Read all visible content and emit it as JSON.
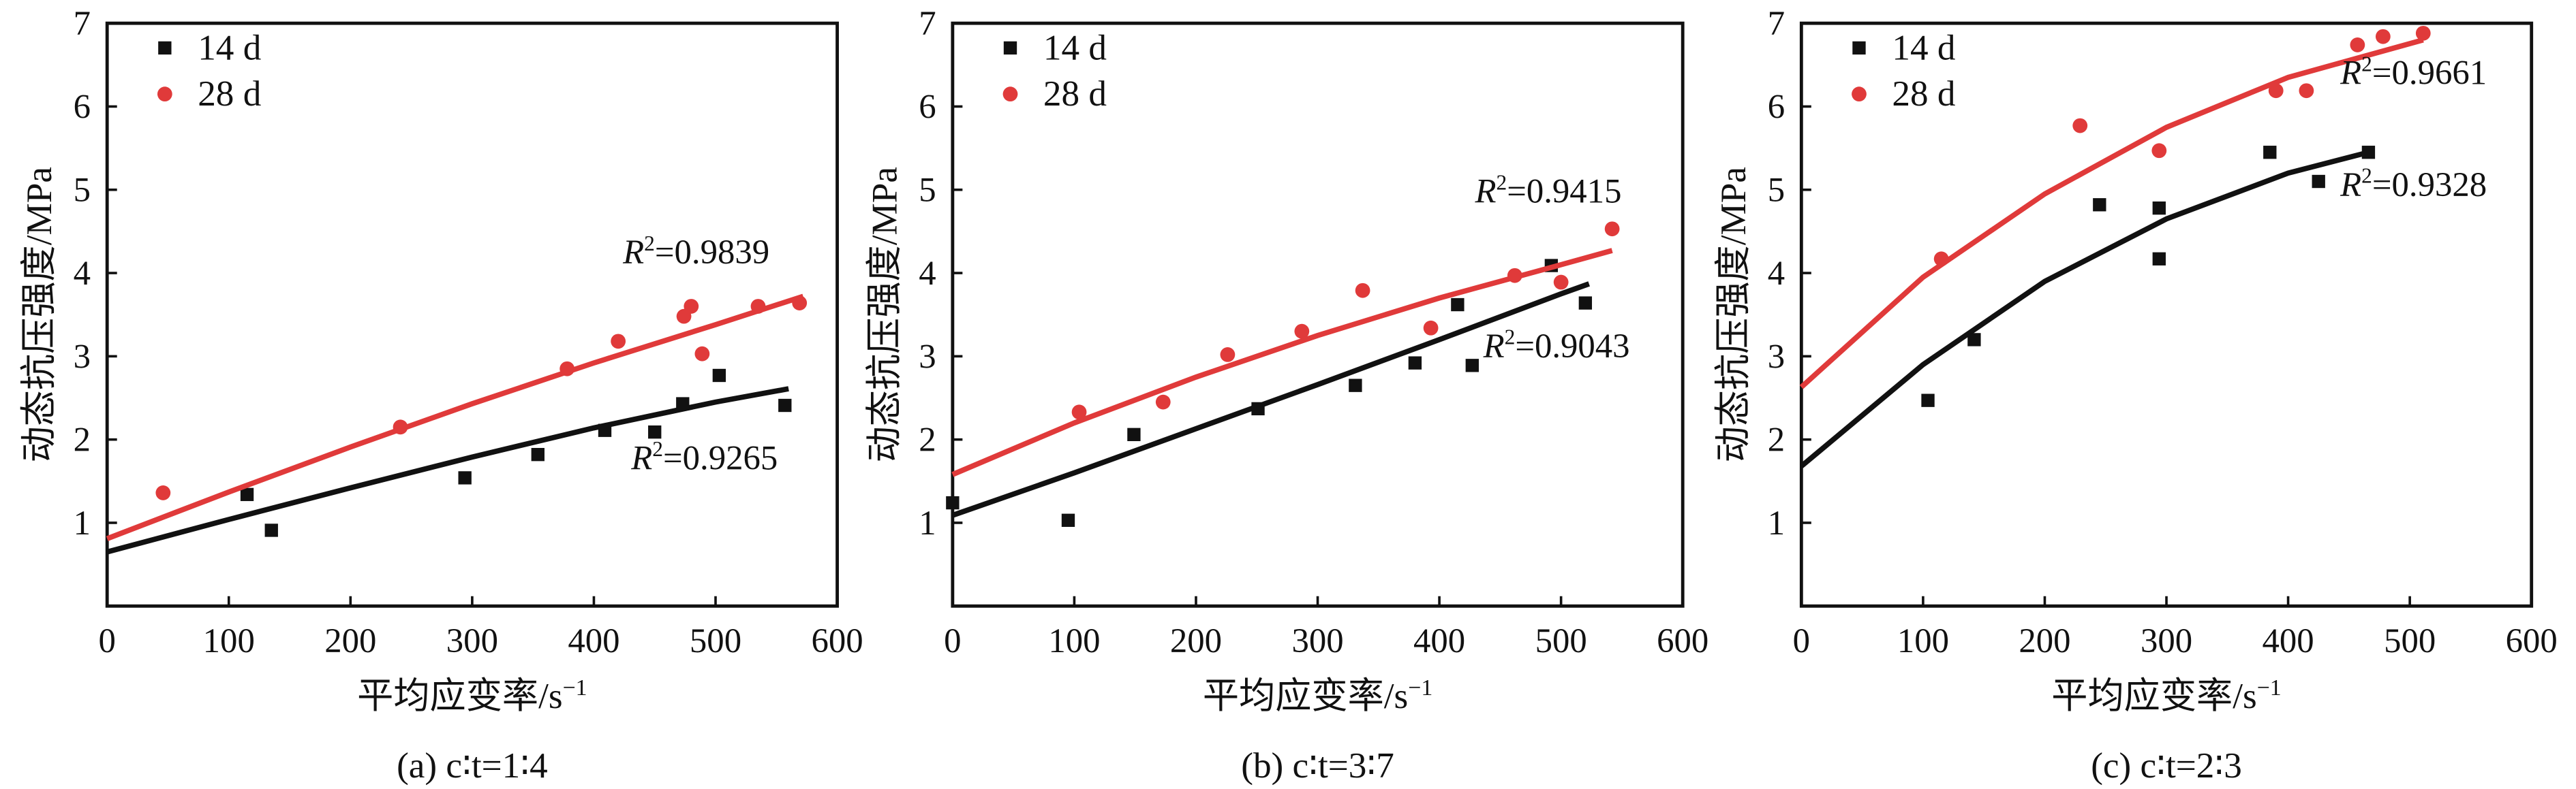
{
  "chart_data": [
    {
      "type": "scatter",
      "caption": "(a) c∶t=1∶4",
      "x_label": "平均应变率/s",
      "x_label_sup": "−1",
      "y_label": "动态抗压强度/MPa",
      "xlim": [
        0,
        600
      ],
      "ylim": [
        0,
        7
      ],
      "xticks": [
        0,
        100,
        200,
        300,
        400,
        500,
        600
      ],
      "yticks": [
        1,
        2,
        3,
        4,
        5,
        6,
        7
      ],
      "legend": "upper left",
      "series": [
        {
          "name": "14 d",
          "color": "#111111",
          "marker": "square",
          "x": [
            115,
            135,
            294,
            354,
            409,
            450,
            473,
            503,
            557
          ],
          "values": [
            1.34,
            0.91,
            1.54,
            1.82,
            2.11,
            2.09,
            2.43,
            2.77,
            2.41
          ],
          "fit": {
            "x": [
              0,
              100,
              200,
              300,
              400,
              500,
              560
            ],
            "values": [
              0.65,
              1.04,
              1.42,
              1.79,
              2.14,
              2.45,
              2.61
            ]
          },
          "r2": {
            "base": "R",
            "sup": "2",
            "rest": "=0.9265"
          }
        },
        {
          "name": "28 d",
          "color": "#e03a3a",
          "marker": "circle",
          "x": [
            46,
            241,
            378,
            420,
            489,
            474,
            480,
            535,
            569
          ],
          "values": [
            1.36,
            2.15,
            2.85,
            3.18,
            3.03,
            3.48,
            3.6,
            3.6,
            3.64
          ],
          "fit": {
            "x": [
              0,
              100,
              200,
              300,
              400,
              500,
              572
            ],
            "values": [
              0.81,
              1.37,
              1.91,
              2.43,
              2.92,
              3.38,
              3.72
            ]
          },
          "r2": {
            "base": "R",
            "sup": "2",
            "rest": "=0.9839"
          }
        }
      ]
    },
    {
      "type": "scatter",
      "caption": "(b) c∶t=3∶7",
      "x_label": "平均应变率/s",
      "x_label_sup": "−1",
      "y_label": "动态抗压强度/MPa",
      "xlim": [
        0,
        600
      ],
      "ylim": [
        0,
        7
      ],
      "xticks": [
        0,
        100,
        200,
        300,
        400,
        500,
        600
      ],
      "yticks": [
        1,
        2,
        3,
        4,
        5,
        6,
        7
      ],
      "legend": "upper left",
      "series": [
        {
          "name": "14 d",
          "color": "#111111",
          "marker": "square",
          "x": [
            0,
            95,
            149,
            251,
            331,
            380,
            415,
            427,
            492,
            520
          ],
          "values": [
            1.24,
            1.03,
            2.06,
            2.37,
            2.65,
            2.92,
            3.62,
            2.89,
            4.09,
            3.64
          ],
          "fit": {
            "x": [
              0,
              100,
              200,
              300,
              400,
              500,
              523
            ],
            "values": [
              1.09,
              1.6,
              2.13,
              2.66,
              3.2,
              3.75,
              3.87
            ]
          },
          "r2": {
            "base": "R",
            "sup": "2",
            "rest": "=0.9043"
          }
        },
        {
          "name": "28 d",
          "color": "#e03a3a",
          "marker": "circle",
          "x": [
            104,
            173,
            226,
            287,
            337,
            393,
            462,
            500,
            542
          ],
          "values": [
            2.33,
            2.45,
            3.02,
            3.3,
            3.79,
            3.34,
            3.97,
            3.89,
            4.53
          ],
          "fit": {
            "x": [
              0,
              100,
              200,
              300,
              400,
              500,
              542
            ],
            "values": [
              1.58,
              2.2,
              2.75,
              3.25,
              3.7,
              4.1,
              4.27
            ]
          },
          "r2": {
            "base": "R",
            "sup": "2",
            "rest": "=0.9415"
          }
        }
      ]
    },
    {
      "type": "scatter",
      "caption": "(c) c∶t=2∶3",
      "x_label": "平均应变率/s",
      "x_label_sup": "−1",
      "y_label": "动态抗压强度/MPa",
      "xlim": [
        0,
        600
      ],
      "ylim": [
        0,
        7
      ],
      "xticks": [
        0,
        100,
        200,
        300,
        400,
        500,
        600
      ],
      "yticks": [
        1,
        2,
        3,
        4,
        5,
        6,
        7
      ],
      "legend": "upper left",
      "series": [
        {
          "name": "14 d",
          "color": "#111111",
          "marker": "square",
          "x": [
            104,
            142,
            245,
            294,
            294,
            385,
            425,
            466
          ],
          "values": [
            2.47,
            3.2,
            4.82,
            4.78,
            4.17,
            5.45,
            5.1,
            5.45
          ],
          "fit": {
            "x": [
              0,
              100,
              200,
              300,
              400,
              466
            ],
            "values": [
              1.68,
              2.9,
              3.9,
              4.65,
              5.2,
              5.45
            ]
          },
          "r2": {
            "base": "R",
            "sup": "2",
            "rest": "=0.9328"
          }
        },
        {
          "name": "28 d",
          "color": "#e03a3a",
          "marker": "circle",
          "x": [
            115,
            229,
            294,
            390,
            415,
            457,
            478,
            511
          ],
          "values": [
            4.17,
            5.77,
            5.47,
            6.19,
            6.19,
            6.74,
            6.84,
            6.88
          ],
          "fit": {
            "x": [
              0,
              100,
              200,
              300,
              400,
              511
            ],
            "values": [
              2.63,
              3.95,
              4.95,
              5.75,
              6.35,
              6.8
            ]
          },
          "r2": {
            "base": "R",
            "sup": "2",
            "rest": "=0.9661"
          }
        }
      ]
    }
  ]
}
